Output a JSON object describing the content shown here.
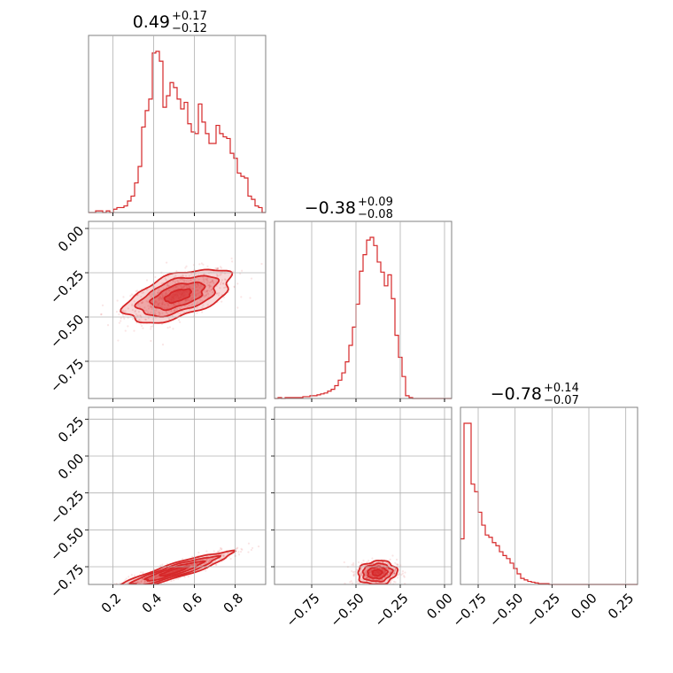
{
  "chart_data": {
    "type": "corner",
    "color": "#d62728",
    "grid": true,
    "titles": [
      {
        "median": "0.49",
        "plus": "+0.17",
        "minus": "−0.12"
      },
      {
        "median": "−0.38",
        "plus": "+0.09",
        "minus": "−0.08"
      },
      {
        "median": "−0.78",
        "plus": "+0.14",
        "minus": "−0.07"
      }
    ],
    "params": [
      {
        "range": [
          0.08,
          0.95
        ],
        "ticks": [
          0.2,
          0.4,
          0.6,
          0.8
        ],
        "tick_labels": [
          "0.2",
          "0.4",
          "0.6",
          "0.8"
        ]
      },
      {
        "range": [
          -0.96,
          0.04
        ],
        "ticks": [
          -0.75,
          -0.5,
          -0.25,
          0.0
        ],
        "tick_labels": [
          "−0.75",
          "−0.50",
          "−0.25",
          "0.00"
        ]
      },
      {
        "range": [
          -0.87,
          0.33
        ],
        "ticks": [
          -0.75,
          -0.5,
          -0.25,
          0.0,
          0.25
        ],
        "tick_labels": [
          "−0.75",
          "−0.50",
          "−0.25",
          "0.00",
          "0.25"
        ]
      }
    ],
    "histograms": [
      {
        "param": 0,
        "bin_start": 0.08,
        "bin_width": 0.0174,
        "counts": [
          0,
          0,
          1,
          1,
          0,
          1,
          0,
          2,
          3,
          3,
          4,
          7,
          10,
          18,
          28,
          52,
          62,
          69,
          97,
          98,
          92,
          64,
          71,
          79,
          76,
          69,
          63,
          67,
          54,
          49,
          48,
          66,
          55,
          48,
          42,
          42,
          53,
          48,
          46,
          45,
          36,
          33,
          24,
          22,
          21,
          10,
          8,
          4,
          3,
          0
        ]
      },
      {
        "param": 1,
        "bin_start": -0.96,
        "bin_width": 0.02,
        "counts": [
          0,
          1,
          0,
          1,
          1,
          1,
          1,
          1,
          2,
          2,
          3,
          3,
          4,
          5,
          6,
          8,
          10,
          14,
          20,
          28,
          40,
          58,
          78,
          103,
          139,
          157,
          173,
          176,
          167,
          149,
          138,
          123,
          135,
          109,
          69,
          45,
          24,
          3,
          1,
          0,
          0,
          0,
          0,
          0,
          0,
          0,
          0,
          0,
          0,
          0
        ]
      },
      {
        "param": 2,
        "bin_start": -0.87,
        "bin_width": 0.024,
        "counts": [
          60,
          212,
          212,
          132,
          122,
          95,
          78,
          65,
          62,
          55,
          51,
          43,
          38,
          34,
          28,
          21,
          14,
          8,
          6,
          4,
          3,
          2,
          1,
          1,
          1,
          0,
          0,
          0,
          0,
          0,
          0,
          0,
          0,
          0,
          0,
          0,
          0,
          0,
          0,
          0,
          0,
          0,
          0,
          0,
          0,
          0,
          0,
          0,
          0,
          0
        ]
      }
    ],
    "correlations": [
      {
        "x_param": 0,
        "y_param": 1,
        "center": [
          0.52,
          -0.38
        ],
        "sd": [
          0.13,
          0.075
        ],
        "rho": 0.55,
        "contour_scale": [
          0.5,
          1.0,
          1.5,
          2.0
        ]
      },
      {
        "x_param": 0,
        "y_param": 2,
        "center": [
          0.5,
          -0.78
        ],
        "sd": [
          0.14,
          0.065
        ],
        "rho": 0.92,
        "contour_scale": [
          0.5,
          1.0,
          1.5,
          2.0
        ]
      },
      {
        "x_param": 1,
        "y_param": 2,
        "center": [
          -0.38,
          -0.79
        ],
        "sd": [
          0.055,
          0.04
        ],
        "rho": 0.1,
        "contour_scale": [
          0.5,
          1.0,
          1.5,
          2.0
        ]
      }
    ]
  }
}
